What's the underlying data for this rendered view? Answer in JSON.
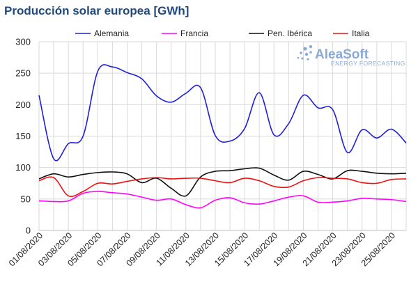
{
  "chart_data": {
    "type": "line",
    "title": "Producción solar europea [GWh]",
    "xlabel": "",
    "ylabel": "",
    "ylim": [
      0,
      300
    ],
    "yticks": [
      0,
      50,
      100,
      150,
      200,
      250,
      300
    ],
    "x": [
      "01/08/2020",
      "02/08/2020",
      "03/08/2020",
      "04/08/2020",
      "05/08/2020",
      "06/08/2020",
      "07/08/2020",
      "08/08/2020",
      "09/08/2020",
      "10/08/2020",
      "11/08/2020",
      "12/08/2020",
      "13/08/2020",
      "14/08/2020",
      "15/08/2020",
      "16/08/2020",
      "17/08/2020",
      "18/08/2020",
      "19/08/2020",
      "20/08/2020",
      "21/08/2020",
      "22/08/2020",
      "23/08/2020",
      "24/08/2020",
      "25/08/2020",
      "26/08/2020"
    ],
    "xtick_labels": [
      "01/08/2020",
      "03/08/2020",
      "05/08/2020",
      "07/08/2020",
      "09/08/2020",
      "11/08/2020",
      "13/08/2020",
      "15/08/2020",
      "17/08/2020",
      "19/08/2020",
      "21/08/2020",
      "23/08/2020",
      "25/08/2020"
    ],
    "grid": true,
    "legend_position": "top",
    "series": [
      {
        "name": "Alemania",
        "color": "#1f1fd6",
        "values": [
          215,
          114,
          138,
          150,
          253,
          260,
          251,
          241,
          214,
          204,
          218,
          227,
          151,
          142,
          162,
          219,
          152,
          170,
          215,
          195,
          192,
          124,
          160,
          147,
          161,
          139
        ]
      },
      {
        "name": "Francia",
        "color": "#ff00ff",
        "values": [
          47,
          46,
          47,
          59,
          62,
          60,
          58,
          53,
          48,
          50,
          41,
          36,
          48,
          52,
          44,
          42,
          47,
          53,
          55,
          45,
          45,
          47,
          51,
          50,
          49,
          46
        ]
      },
      {
        "name": "Pen. Ibérica",
        "color": "#111111",
        "values": [
          82,
          90,
          85,
          89,
          92,
          93,
          90,
          76,
          83,
          67,
          55,
          85,
          94,
          95,
          98,
          99,
          88,
          80,
          94,
          89,
          82,
          95,
          94,
          91,
          90,
          91
        ]
      },
      {
        "name": "Italia",
        "color": "#ee1111",
        "values": [
          79,
          84,
          55,
          62,
          75,
          74,
          78,
          82,
          84,
          82,
          83,
          83,
          79,
          76,
          83,
          79,
          70,
          69,
          79,
          84,
          83,
          82,
          76,
          75,
          81,
          82
        ]
      }
    ]
  },
  "watermark": {
    "brand": "AleaSoft",
    "tagline": "ENERGY FORECASTING",
    "icon": "dots-logo-icon"
  }
}
